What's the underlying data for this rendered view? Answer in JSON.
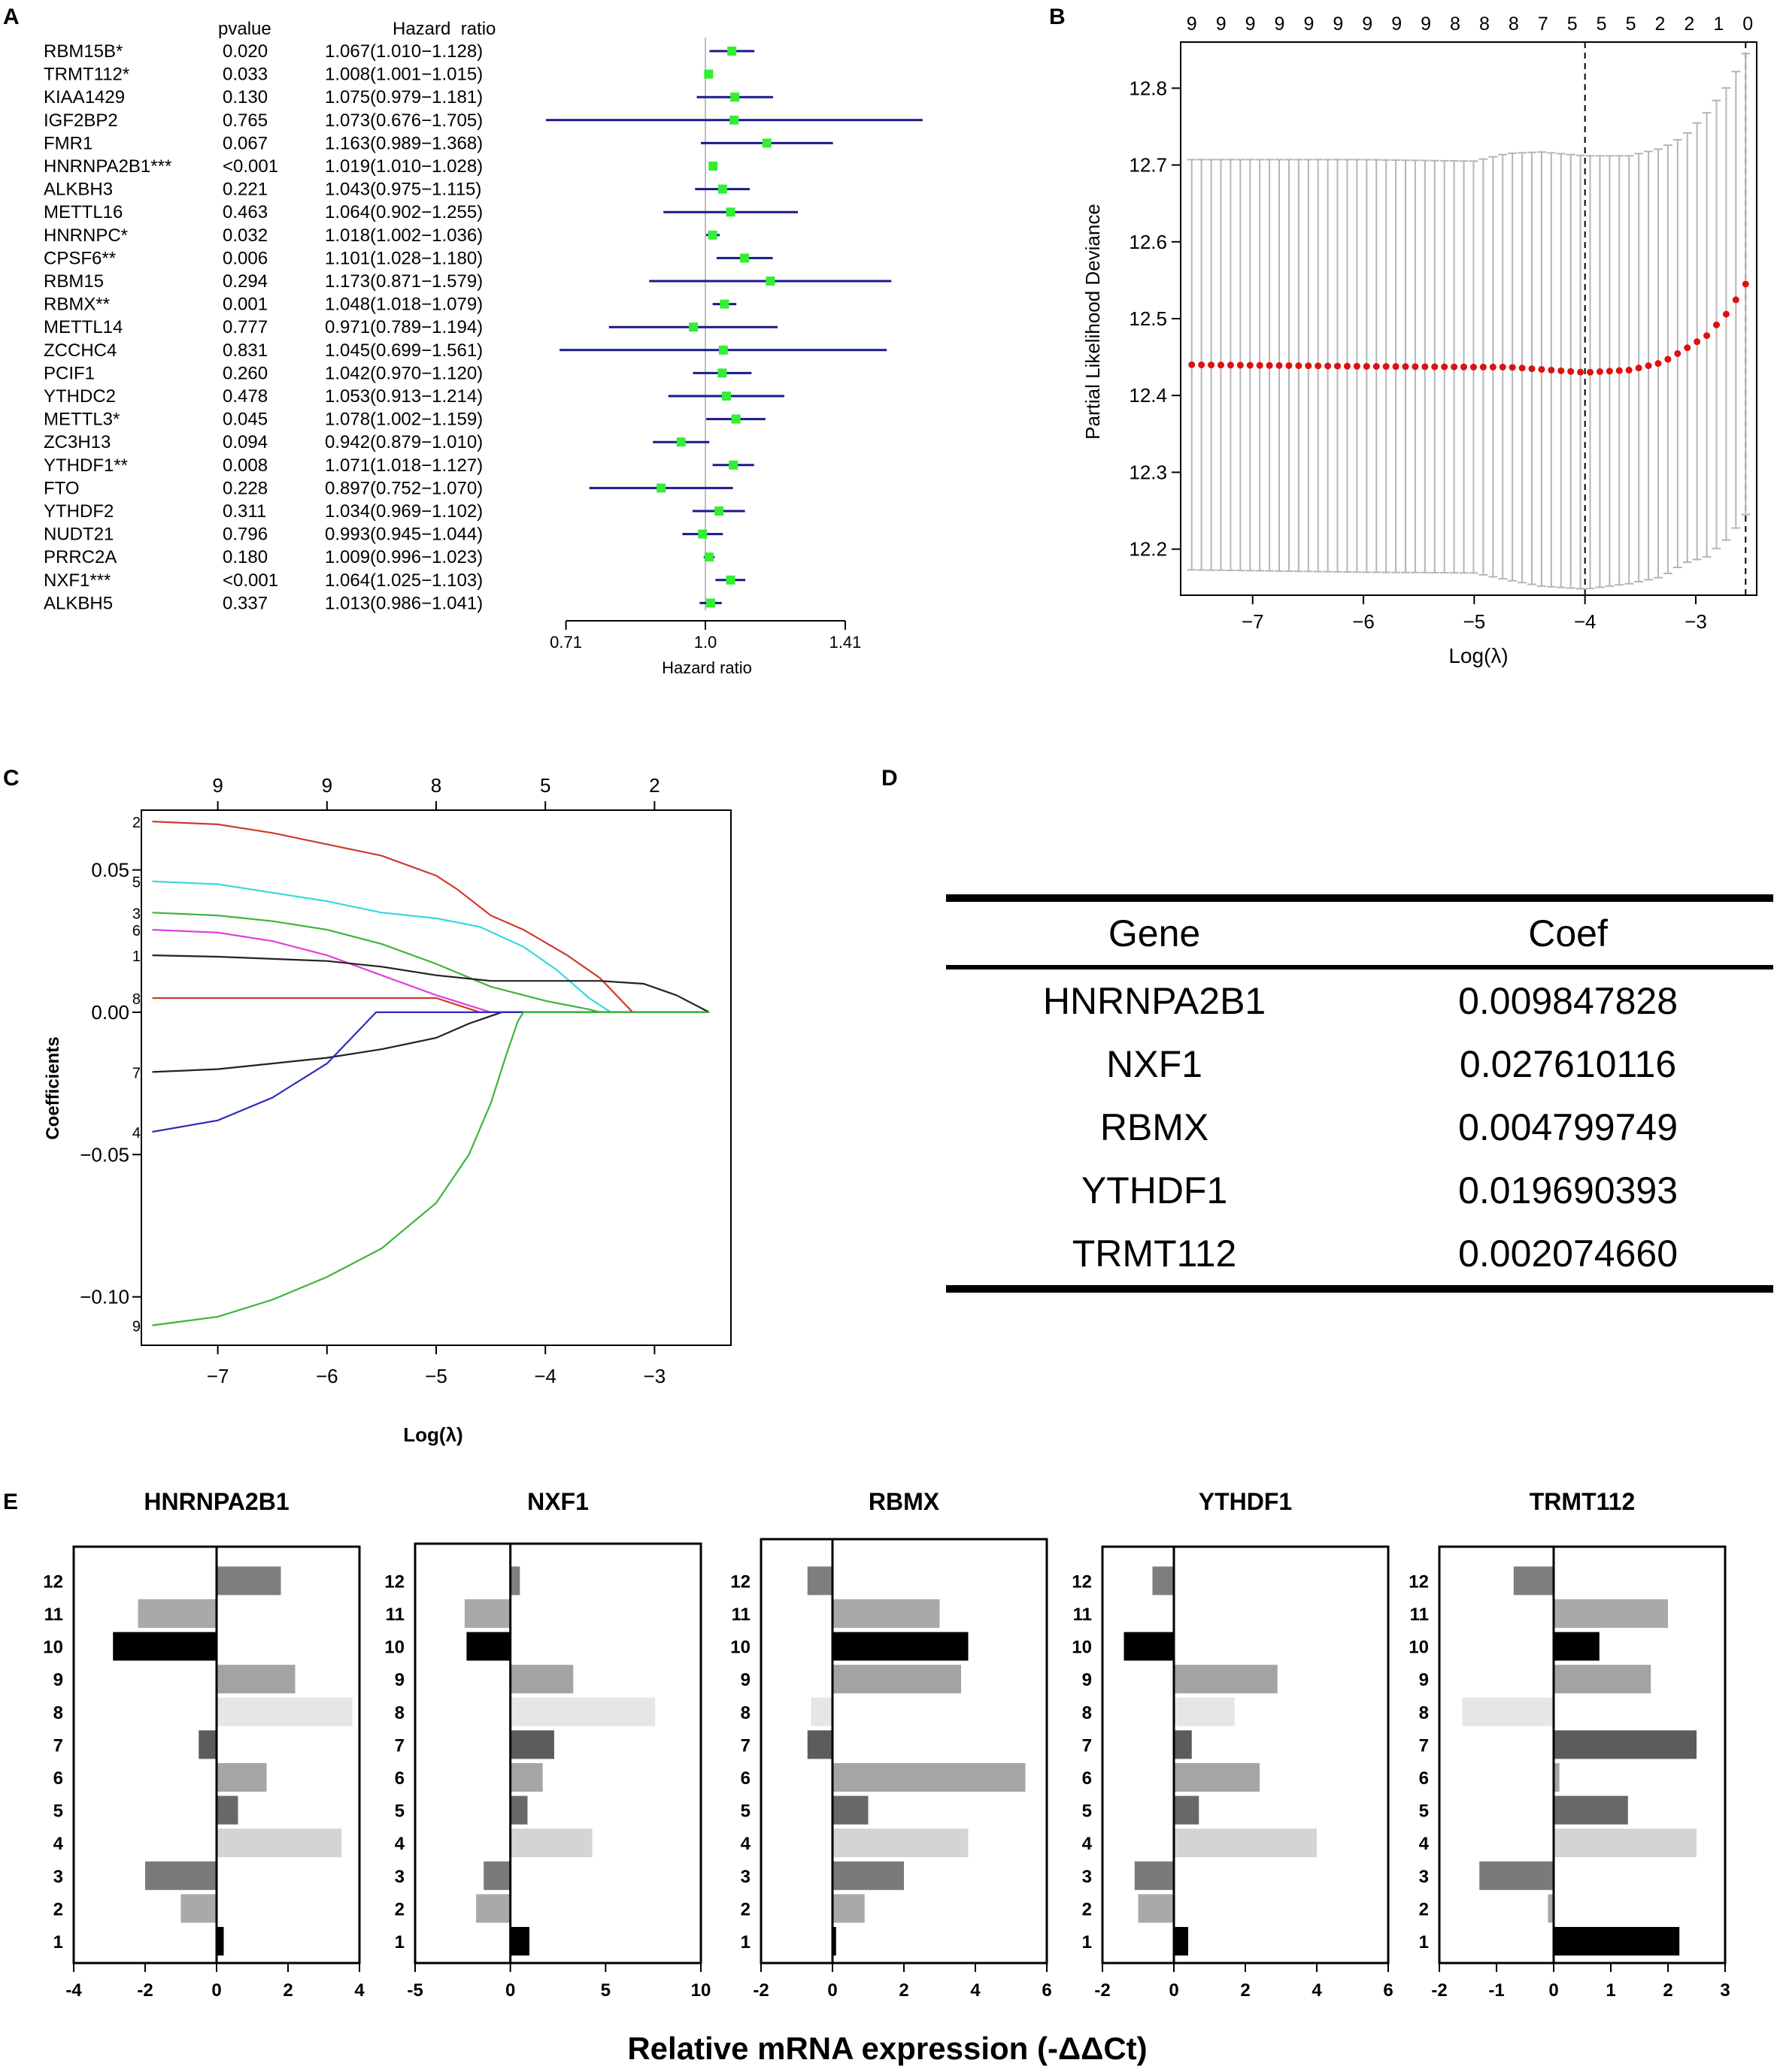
{
  "panel_letters": {
    "a": "A",
    "b": "B",
    "c": "C",
    "d": "D",
    "e": "E"
  },
  "chart_data": [
    {
      "id": "A",
      "type": "forest",
      "col_pvalue": "pvalue",
      "col_hr": "Hazard  ratio",
      "xlabel": "Hazard ratio",
      "ticks": [
        "0.71",
        "1.0",
        "1.41"
      ],
      "rows": [
        {
          "gene": "RBM15B*",
          "p": "0.020",
          "hr_text": "1.067(1.010−1.128)",
          "hr": 1.067,
          "lo": 1.01,
          "hi": 1.128
        },
        {
          "gene": "TRMT112*",
          "p": "0.033",
          "hr_text": "1.008(1.001−1.015)",
          "hr": 1.008,
          "lo": 1.001,
          "hi": 1.015
        },
        {
          "gene": "KIAA1429",
          "p": "0.130",
          "hr_text": "1.075(0.979−1.181)",
          "hr": 1.075,
          "lo": 0.979,
          "hi": 1.181
        },
        {
          "gene": "IGF2BP2",
          "p": "0.765",
          "hr_text": "1.073(0.676−1.705)",
          "hr": 1.073,
          "lo": 0.676,
          "hi": 1.705
        },
        {
          "gene": "FMR1",
          "p": "0.067",
          "hr_text": "1.163(0.989−1.368)",
          "hr": 1.163,
          "lo": 0.989,
          "hi": 1.368
        },
        {
          "gene": "HNRNPA2B1***",
          "p": "<0.001",
          "hr_text": "1.019(1.010−1.028)",
          "hr": 1.019,
          "lo": 1.01,
          "hi": 1.028
        },
        {
          "gene": "ALKBH3",
          "p": "0.221",
          "hr_text": "1.043(0.975−1.115)",
          "hr": 1.043,
          "lo": 0.975,
          "hi": 1.115
        },
        {
          "gene": "METTL16",
          "p": "0.463",
          "hr_text": "1.064(0.902−1.255)",
          "hr": 1.064,
          "lo": 0.902,
          "hi": 1.255
        },
        {
          "gene": "HNRNPC*",
          "p": "0.032",
          "hr_text": "1.018(1.002−1.036)",
          "hr": 1.018,
          "lo": 1.002,
          "hi": 1.036
        },
        {
          "gene": "CPSF6**",
          "p": "0.006",
          "hr_text": "1.101(1.028−1.180)",
          "hr": 1.101,
          "lo": 1.028,
          "hi": 1.18
        },
        {
          "gene": "RBM15",
          "p": "0.294",
          "hr_text": "1.173(0.871−1.579)",
          "hr": 1.173,
          "lo": 0.871,
          "hi": 1.579
        },
        {
          "gene": "RBMX**",
          "p": "0.001",
          "hr_text": "1.048(1.018−1.079)",
          "hr": 1.048,
          "lo": 1.018,
          "hi": 1.079
        },
        {
          "gene": "METTL14",
          "p": "0.777",
          "hr_text": "0.971(0.789−1.194)",
          "hr": 0.971,
          "lo": 0.789,
          "hi": 1.194
        },
        {
          "gene": "ZCCHC4",
          "p": "0.831",
          "hr_text": "1.045(0.699−1.561)",
          "hr": 1.045,
          "lo": 0.699,
          "hi": 1.561
        },
        {
          "gene": "PCIF1",
          "p": "0.260",
          "hr_text": "1.042(0.970−1.120)",
          "hr": 1.042,
          "lo": 0.97,
          "hi": 1.12
        },
        {
          "gene": "YTHDC2",
          "p": "0.478",
          "hr_text": "1.053(0.913−1.214)",
          "hr": 1.053,
          "lo": 0.913,
          "hi": 1.214
        },
        {
          "gene": "METTL3*",
          "p": "0.045",
          "hr_text": "1.078(1.002−1.159)",
          "hr": 1.078,
          "lo": 1.002,
          "hi": 1.159
        },
        {
          "gene": "ZC3H13",
          "p": "0.094",
          "hr_text": "0.942(0.879−1.010)",
          "hr": 0.942,
          "lo": 0.879,
          "hi": 1.01
        },
        {
          "gene": "YTHDF1**",
          "p": "0.008",
          "hr_text": "1.071(1.018−1.127)",
          "hr": 1.071,
          "lo": 1.018,
          "hi": 1.127
        },
        {
          "gene": "FTO",
          "p": "0.228",
          "hr_text": "0.897(0.752−1.070)",
          "hr": 0.897,
          "lo": 0.752,
          "hi": 1.07
        },
        {
          "gene": "YTHDF2",
          "p": "0.311",
          "hr_text": "1.034(0.969−1.102)",
          "hr": 1.034,
          "lo": 0.969,
          "hi": 1.102
        },
        {
          "gene": "NUDT21",
          "p": "0.796",
          "hr_text": "0.993(0.945−1.044)",
          "hr": 0.993,
          "lo": 0.945,
          "hi": 1.044
        },
        {
          "gene": "PRRC2A",
          "p": "0.180",
          "hr_text": "1.009(0.996−1.023)",
          "hr": 1.009,
          "lo": 0.996,
          "hi": 1.023
        },
        {
          "gene": "NXF1***",
          "p": "<0.001",
          "hr_text": "1.064(1.025−1.103)",
          "hr": 1.064,
          "lo": 1.025,
          "hi": 1.103
        },
        {
          "gene": "ALKBH5",
          "p": "0.337",
          "hr_text": "1.013(0.986−1.041)",
          "hr": 1.013,
          "lo": 0.986,
          "hi": 1.041
        }
      ]
    },
    {
      "id": "B",
      "type": "scatter",
      "title": "",
      "xlabel": "Log(λ)",
      "ylabel": "Partial Likelihood Deviance",
      "xlim": [
        -7.65,
        -2.45
      ],
      "ylim": [
        12.14,
        12.86
      ],
      "xticks": [
        -7,
        -6,
        -5,
        -4,
        -3
      ],
      "xtick_labels": [
        "−7",
        "−6",
        "−5",
        "−4",
        "−3"
      ],
      "yticks": [
        12.2,
        12.3,
        12.4,
        12.5,
        12.6,
        12.7,
        12.8
      ],
      "ytick_labels": [
        "12.2",
        "12.3",
        "12.4",
        "12.5",
        "12.6",
        "12.7",
        "12.8"
      ],
      "top_counts": [
        "9",
        "9",
        "9",
        "9",
        "9",
        "9",
        "9",
        "9",
        "9",
        "8",
        "8",
        "8",
        "7",
        "5",
        "5",
        "5",
        "2",
        "2",
        "1",
        "0"
      ],
      "vlines": [
        -4.0,
        -2.55
      ],
      "anchors": [
        [
          -7.55,
          12.44,
          12.707,
          12.173
        ],
        [
          -6.0,
          12.438,
          12.707,
          12.17
        ],
        [
          -5.0,
          12.437,
          12.705,
          12.169
        ],
        [
          -4.7,
          12.437,
          12.715,
          12.16
        ],
        [
          -4.4,
          12.434,
          12.717,
          12.152
        ],
        [
          -4.0,
          12.43,
          12.712,
          12.148
        ],
        [
          -3.6,
          12.433,
          12.712,
          12.155
        ],
        [
          -3.3,
          12.443,
          12.722,
          12.164
        ],
        [
          -3.1,
          12.46,
          12.738,
          12.182
        ],
        [
          -2.9,
          12.478,
          12.768,
          12.19
        ],
        [
          -2.7,
          12.51,
          12.805,
          12.215
        ],
        [
          -2.55,
          12.545,
          12.845,
          12.245
        ]
      ]
    },
    {
      "id": "C",
      "type": "line",
      "xlabel": "Log(λ)",
      "ylabel": "Coefficients",
      "xlim": [
        -7.7,
        -2.3
      ],
      "ylim": [
        -0.117,
        0.071
      ],
      "xticks": [
        -7,
        -6,
        -5,
        -4,
        -3
      ],
      "xtick_labels": [
        "−7",
        "−6",
        "−5",
        "−4",
        "−3"
      ],
      "yticks": [
        -0.1,
        -0.05,
        0.0,
        0.05
      ],
      "ytick_labels": [
        "−0.10",
        "−0.05",
        "0.00",
        "0.05"
      ],
      "top_ticks": [
        -7,
        -6,
        -5,
        -4,
        -3
      ],
      "top_labels": [
        "9",
        "9",
        "8",
        "5",
        "2"
      ],
      "series": [
        {
          "name": "2",
          "color": "#d03a2e",
          "points": [
            [
              -7.6,
              0.067
            ],
            [
              -7.0,
              0.066
            ],
            [
              -6.5,
              0.063
            ],
            [
              -6.0,
              0.059
            ],
            [
              -5.5,
              0.055
            ],
            [
              -5.0,
              0.048
            ],
            [
              -4.8,
              0.043
            ],
            [
              -4.5,
              0.034
            ],
            [
              -4.2,
              0.029
            ],
            [
              -3.8,
              0.02
            ],
            [
              -3.5,
              0.012
            ],
            [
              -3.3,
              0.004
            ],
            [
              -3.2,
              0.0
            ],
            [
              -2.5,
              0.0
            ]
          ]
        },
        {
          "name": "5",
          "color": "#39d7df",
          "points": [
            [
              -7.6,
              0.046
            ],
            [
              -7.0,
              0.045
            ],
            [
              -6.5,
              0.042
            ],
            [
              -6.0,
              0.039
            ],
            [
              -5.5,
              0.035
            ],
            [
              -5.0,
              0.033
            ],
            [
              -4.6,
              0.03
            ],
            [
              -4.2,
              0.023
            ],
            [
              -3.9,
              0.015
            ],
            [
              -3.6,
              0.005
            ],
            [
              -3.4,
              0.0
            ],
            [
              -2.5,
              0.0
            ]
          ]
        },
        {
          "name": "3",
          "color": "#3eb43e",
          "points": [
            [
              -7.6,
              0.035
            ],
            [
              -7.0,
              0.034
            ],
            [
              -6.5,
              0.032
            ],
            [
              -6.0,
              0.029
            ],
            [
              -5.5,
              0.024
            ],
            [
              -5.0,
              0.017
            ],
            [
              -4.5,
              0.009
            ],
            [
              -4.0,
              0.004
            ],
            [
              -3.6,
              0.001
            ],
            [
              -3.5,
              0.0
            ],
            [
              -2.5,
              0.0
            ]
          ]
        },
        {
          "name": "6",
          "color": "#e040e0",
          "points": [
            [
              -7.6,
              0.029
            ],
            [
              -7.0,
              0.028
            ],
            [
              -6.5,
              0.025
            ],
            [
              -6.0,
              0.02
            ],
            [
              -5.5,
              0.013
            ],
            [
              -5.0,
              0.006
            ],
            [
              -4.5,
              0.0
            ],
            [
              -2.5,
              0.0
            ]
          ]
        },
        {
          "name": "1",
          "color": "#222222",
          "points": [
            [
              -7.6,
              0.02
            ],
            [
              -7.0,
              0.0195
            ],
            [
              -6.0,
              0.018
            ],
            [
              -5.5,
              0.016
            ],
            [
              -5.0,
              0.013
            ],
            [
              -4.5,
              0.011
            ],
            [
              -4.0,
              0.011
            ],
            [
              -3.5,
              0.011
            ],
            [
              -3.1,
              0.01
            ],
            [
              -2.8,
              0.006
            ],
            [
              -2.5,
              0.0
            ]
          ]
        },
        {
          "name": "8",
          "color": "#d03a2e",
          "points": [
            [
              -7.6,
              0.005
            ],
            [
              -6.0,
              0.005
            ],
            [
              -5.0,
              0.005
            ],
            [
              -4.6,
              0.0
            ],
            [
              -2.5,
              0.0
            ]
          ]
        },
        {
          "name": "7",
          "color": "#222222",
          "points": [
            [
              -7.6,
              -0.021
            ],
            [
              -7.0,
              -0.02
            ],
            [
              -6.5,
              -0.018
            ],
            [
              -6.0,
              -0.016
            ],
            [
              -5.5,
              -0.013
            ],
            [
              -5.0,
              -0.009
            ],
            [
              -4.7,
              -0.004
            ],
            [
              -4.4,
              0.0
            ],
            [
              -2.5,
              0.0
            ]
          ]
        },
        {
          "name": "4",
          "color": "#2d2dbd",
          "points": [
            [
              -7.6,
              -0.042
            ],
            [
              -7.0,
              -0.038
            ],
            [
              -6.5,
              -0.03
            ],
            [
              -6.0,
              -0.018
            ],
            [
              -5.7,
              -0.006
            ],
            [
              -5.55,
              0.0
            ],
            [
              -2.5,
              0.0
            ]
          ]
        },
        {
          "name": "9",
          "color": "#3eb43e",
          "points": [
            [
              -7.6,
              -0.11
            ],
            [
              -7.0,
              -0.107
            ],
            [
              -6.5,
              -0.101
            ],
            [
              -6.0,
              -0.093
            ],
            [
              -5.5,
              -0.083
            ],
            [
              -5.0,
              -0.067
            ],
            [
              -4.7,
              -0.05
            ],
            [
              -4.5,
              -0.032
            ],
            [
              -4.35,
              -0.014
            ],
            [
              -4.25,
              -0.003
            ],
            [
              -4.2,
              0.0
            ],
            [
              -2.5,
              0.0
            ]
          ]
        }
      ]
    },
    {
      "id": "D",
      "type": "table",
      "headers": [
        "Gene",
        "Coef"
      ],
      "rows": [
        [
          "HNRNPA2B1",
          "0.009847828"
        ],
        [
          "NXF1",
          "0.027610116"
        ],
        [
          "RBMX",
          "0.004799749"
        ],
        [
          "YTHDF1",
          "0.019690393"
        ],
        [
          "TRMT112",
          "0.002074660"
        ]
      ]
    },
    {
      "id": "E",
      "type": "bar",
      "orientation": "horizontal",
      "xlabel": "Relative mRNA expression (-ΔΔCt)",
      "categories": [
        "1",
        "2",
        "3",
        "4",
        "5",
        "6",
        "7",
        "8",
        "9",
        "10",
        "11",
        "12"
      ],
      "bar_colors": [
        "#000000",
        "#a9a9a9",
        "#7a7a7a",
        "#d4d4d4",
        "#686868",
        "#a5a5a5",
        "#5c5c5c",
        "#e6e6e6",
        "#a3a3a3",
        "#000000",
        "#a9a9a9",
        "#7e7e7e"
      ],
      "panels": [
        {
          "title": "HNRNPA2B1",
          "xlim": [
            -4,
            4
          ],
          "xticks": [
            -4,
            -2,
            0,
            2,
            4
          ],
          "values": [
            0.2,
            -1.0,
            -2.0,
            3.5,
            0.6,
            1.4,
            -0.5,
            3.8,
            2.2,
            -2.9,
            -2.2,
            1.8
          ]
        },
        {
          "title": "NXF1",
          "xlim": [
            -5,
            10
          ],
          "xticks": [
            -5,
            0,
            5,
            10
          ],
          "values": [
            1.0,
            -1.8,
            -1.4,
            4.3,
            0.9,
            1.7,
            2.3,
            7.6,
            3.3,
            -2.3,
            -2.4,
            0.5
          ]
        },
        {
          "title": "RBMX",
          "xlim": [
            -2,
            6
          ],
          "xticks": [
            -2,
            0,
            2,
            4,
            6
          ],
          "values": [
            0.1,
            0.9,
            2.0,
            3.8,
            1.0,
            5.4,
            -0.7,
            -0.6,
            3.6,
            3.8,
            3.0,
            -0.7
          ]
        },
        {
          "title": "YTHDF1",
          "xlim": [
            -2,
            6
          ],
          "xticks": [
            -2,
            0,
            2,
            4,
            6
          ],
          "values": [
            0.4,
            -1.0,
            -1.1,
            4.0,
            0.7,
            2.4,
            0.5,
            1.7,
            2.9,
            -1.4,
            0.0,
            -0.6
          ]
        },
        {
          "title": "TRMT112",
          "xlim": [
            -2,
            3
          ],
          "xticks": [
            -2,
            -1,
            0,
            1,
            2,
            3
          ],
          "values": [
            2.2,
            -0.1,
            -1.3,
            2.5,
            1.3,
            0.1,
            2.5,
            -1.6,
            1.7,
            0.8,
            2.0,
            -0.7
          ]
        }
      ]
    }
  ]
}
